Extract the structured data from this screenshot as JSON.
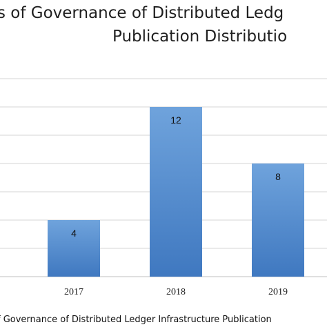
{
  "chart_data": {
    "type": "bar",
    "title_line1": "s of Governance of Distributed Ledg",
    "title_line2": "Publication Distributio",
    "categories": [
      "2017",
      "2018",
      "2019"
    ],
    "values": [
      4,
      12,
      8
    ],
    "ylim": [
      0,
      14
    ],
    "y_step": 2,
    "grid": true,
    "bar_color_top": "#6fa3dc",
    "bar_color_bottom": "#3f78c0",
    "xlabel": "f Governance of Distributed Ledger Infrastructure Publication"
  }
}
